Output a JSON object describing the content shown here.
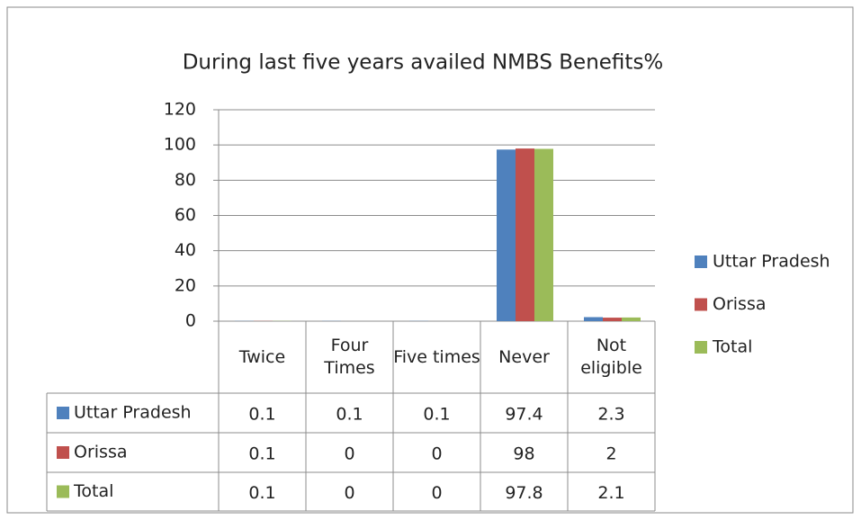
{
  "chart_data": {
    "type": "bar",
    "title": "During last five years availed NMBS Benefits%",
    "categories": [
      "Twice",
      "Four Times",
      "Five times",
      "Never",
      "Not eligible"
    ],
    "series": [
      {
        "name": "Uttar Pradesh",
        "color": "#4f81bd",
        "values": [
          0.1,
          0.1,
          0.1,
          97.4,
          2.3
        ]
      },
      {
        "name": "Orissa",
        "color": "#c0504d",
        "values": [
          0.1,
          0,
          0,
          98,
          2
        ]
      },
      {
        "name": "Total",
        "color": "#9bbb59",
        "values": [
          0.1,
          0,
          0,
          97.8,
          2.1
        ]
      }
    ],
    "ylim": [
      0,
      120
    ],
    "yticks": [
      0,
      20,
      40,
      60,
      80,
      100,
      120
    ],
    "grid": true,
    "legend": "right"
  }
}
